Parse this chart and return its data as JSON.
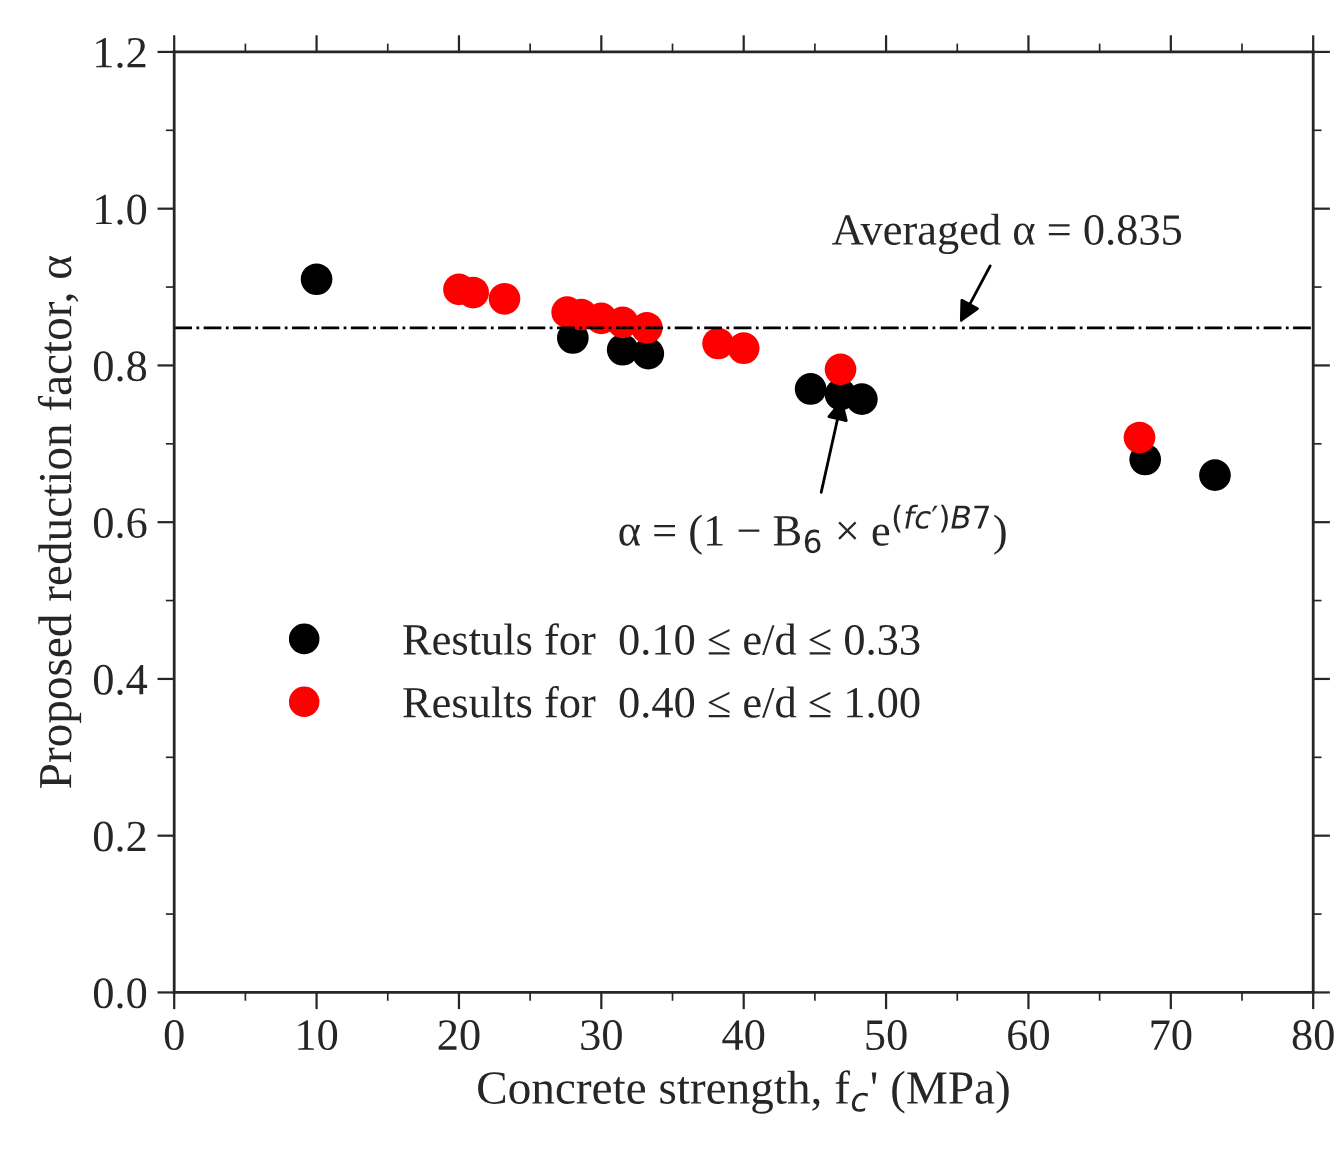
{
  "chart_data": {
    "type": "scatter",
    "xlabel": "Concrete strength, f$_{c}$' (MPa)",
    "ylabel": "Proposed reduction factor, α",
    "xlim": [
      0,
      80
    ],
    "xticks": [
      0,
      10,
      20,
      30,
      40,
      50,
      60,
      70,
      80
    ],
    "ylim": [
      0,
      1.2
    ],
    "yticks": [
      {
        "value": 0,
        "label": "0.0"
      },
      0.2,
      0.4,
      0.6,
      0.8,
      {
        "value": 1.0,
        "label": "1.0"
      },
      {
        "value": 1.2,
        "label": "1.2"
      }
    ],
    "marker": "circle",
    "grid": false,
    "legend": "bottom left",
    "series": [
      {
        "name": "Restuls for  0.10 ≤ e/d ≤ 0.33",
        "color": "#000000",
        "x": [
          10,
          28,
          31.5,
          33.3,
          44.7,
          46.8,
          48.3,
          68.2,
          73.1
        ],
        "values": [
          0.91,
          0.835,
          0.82,
          0.815,
          0.77,
          0.763,
          0.757,
          0.68,
          0.66
        ]
      },
      {
        "name": "Results for  0.40 ≤ e/d ≤ 1.00",
        "color": "#ff0000",
        "x": [
          20,
          21,
          23.2,
          27.6,
          28.6,
          30,
          31.5,
          33.2,
          38.2,
          40,
          46.8,
          67.8
        ],
        "values": [
          0.897,
          0.893,
          0.885,
          0.868,
          0.865,
          0.86,
          0.855,
          0.848,
          0.828,
          0.822,
          0.795,
          0.708
        ]
      }
    ],
    "ref_lines": [
      {
        "axis": "y",
        "value": 0.848,
        "color": "#000000",
        "line_style": "dashdot"
      }
    ],
    "annotations": [
      {
        "text": "Averaged α = 0.835",
        "x": 55,
        "y": 0.848
      },
      {
        "text": "α = (1 − B$_{6}$ × e$^{(fc′)B7}$)",
        "x": 47,
        "y": 0.765
      }
    ]
  }
}
